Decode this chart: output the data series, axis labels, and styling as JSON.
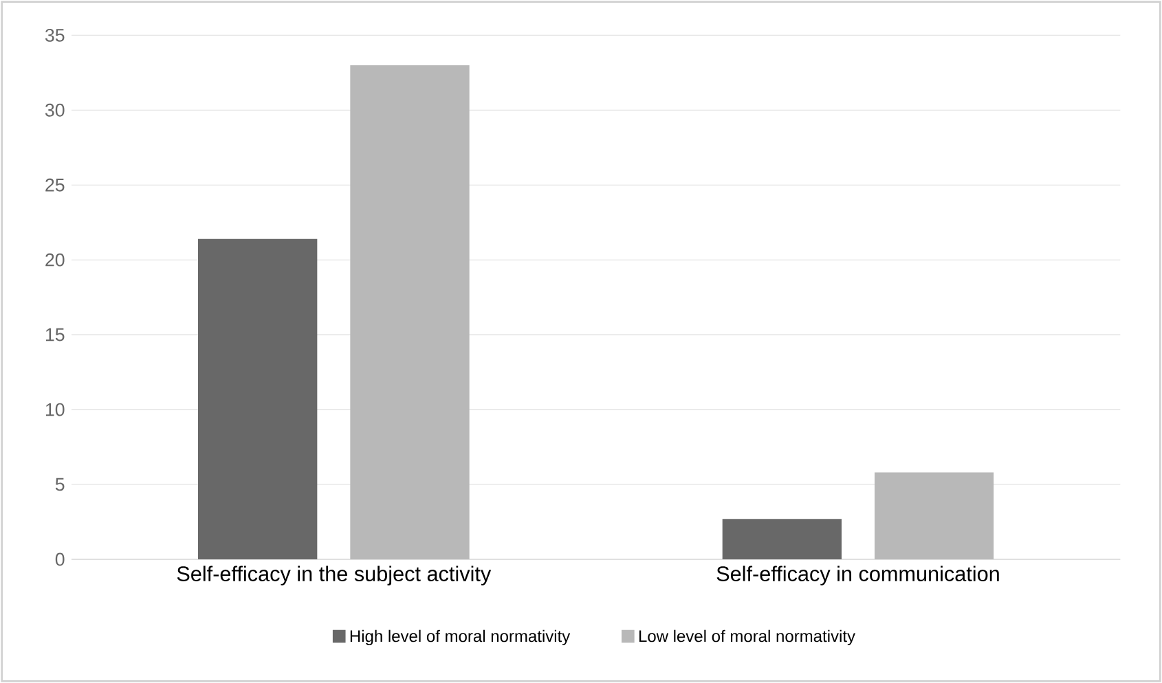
{
  "chart_data": {
    "type": "bar",
    "categories": [
      "Self-efficacy in the subject activity",
      "Self-efficacy in communication"
    ],
    "series": [
      {
        "name": "High level of moral normativity",
        "color": "#686868",
        "values": [
          21.4,
          2.7
        ]
      },
      {
        "name": "Low level of moral normativity",
        "color": "#b8b8b8",
        "values": [
          33.0,
          5.8
        ]
      }
    ],
    "ylim": [
      0,
      35
    ],
    "yticks": [
      0,
      5,
      10,
      15,
      20,
      25,
      30,
      35
    ],
    "grid": "y",
    "legend": "bottom"
  }
}
